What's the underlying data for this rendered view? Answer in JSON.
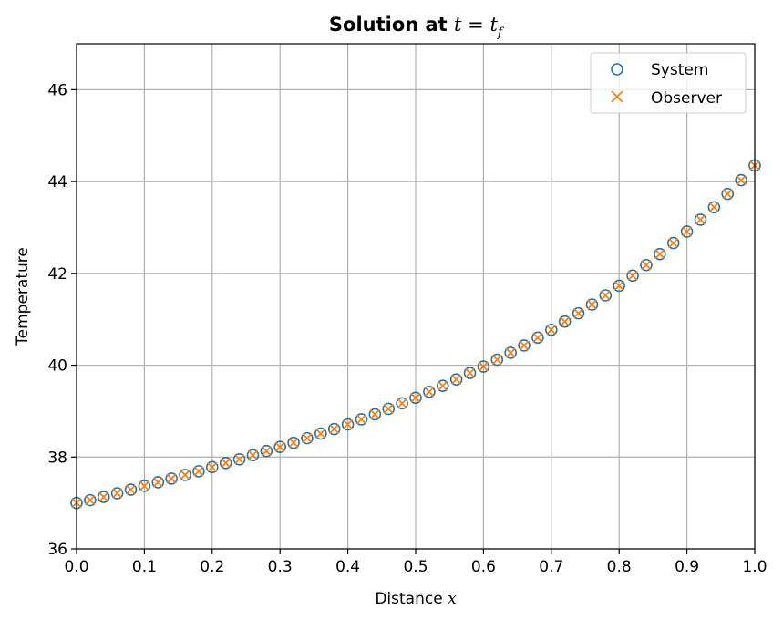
{
  "chart_data": {
    "type": "scatter",
    "title_bold": "Solution at ",
    "title_math": {
      "t": "t",
      "eq": " = ",
      "tf": "t",
      "sub": "f"
    },
    "xlabel": "Distance ",
    "xlabel_math": "x",
    "ylabel": "Temperature",
    "xlim": [
      0.0,
      1.0
    ],
    "ylim": [
      36,
      47
    ],
    "xticks": [
      0.0,
      0.1,
      0.2,
      0.3,
      0.4,
      0.5,
      0.6,
      0.7,
      0.8,
      0.9,
      1.0
    ],
    "xtick_labels": [
      "0.0",
      "0.1",
      "0.2",
      "0.3",
      "0.4",
      "0.5",
      "0.6",
      "0.7",
      "0.8",
      "0.9",
      "1.0"
    ],
    "yticks": [
      36,
      38,
      40,
      42,
      44,
      46
    ],
    "ytick_labels": [
      "36",
      "38",
      "40",
      "42",
      "44",
      "46"
    ],
    "grid": true,
    "legend_position": "top-right",
    "x": [
      0.0,
      0.02,
      0.04,
      0.06,
      0.08,
      0.1,
      0.12,
      0.14,
      0.16,
      0.18,
      0.2,
      0.22,
      0.24,
      0.26,
      0.28,
      0.3,
      0.32,
      0.34,
      0.36,
      0.38,
      0.4,
      0.42,
      0.44,
      0.46,
      0.48,
      0.5,
      0.52,
      0.54,
      0.56,
      0.58,
      0.6,
      0.62,
      0.64,
      0.66,
      0.68,
      0.7,
      0.72,
      0.74,
      0.76,
      0.78,
      0.8,
      0.82,
      0.84,
      0.86,
      0.88,
      0.9,
      0.92,
      0.94,
      0.96,
      0.98,
      1.0
    ],
    "series": [
      {
        "name": "System",
        "marker": "circle",
        "color": "#1f77b4",
        "y": [
          37.0,
          37.06,
          37.13,
          37.21,
          37.29,
          37.37,
          37.45,
          37.53,
          37.61,
          37.69,
          37.78,
          37.87,
          37.95,
          38.04,
          38.13,
          38.22,
          38.31,
          38.41,
          38.51,
          38.61,
          38.71,
          38.82,
          38.93,
          39.05,
          39.17,
          39.29,
          39.42,
          39.55,
          39.69,
          39.83,
          39.97,
          40.12,
          40.27,
          40.43,
          40.6,
          40.77,
          40.95,
          41.13,
          41.32,
          41.52,
          41.73,
          41.95,
          42.18,
          42.42,
          42.66,
          42.91,
          43.17,
          43.44,
          43.73,
          44.03,
          44.35
        ]
      },
      {
        "name": "Observer",
        "marker": "x",
        "color": "#ff7f0e",
        "y": [
          37.0,
          37.06,
          37.13,
          37.21,
          37.29,
          37.37,
          37.45,
          37.53,
          37.61,
          37.69,
          37.78,
          37.87,
          37.95,
          38.04,
          38.13,
          38.22,
          38.31,
          38.41,
          38.51,
          38.61,
          38.71,
          38.82,
          38.93,
          39.05,
          39.17,
          39.29,
          39.42,
          39.55,
          39.69,
          39.83,
          39.97,
          40.12,
          40.27,
          40.43,
          40.6,
          40.77,
          40.95,
          41.13,
          41.32,
          41.52,
          41.73,
          41.95,
          42.18,
          42.42,
          42.66,
          42.91,
          43.17,
          43.44,
          43.73,
          44.03,
          44.35
        ]
      }
    ]
  }
}
